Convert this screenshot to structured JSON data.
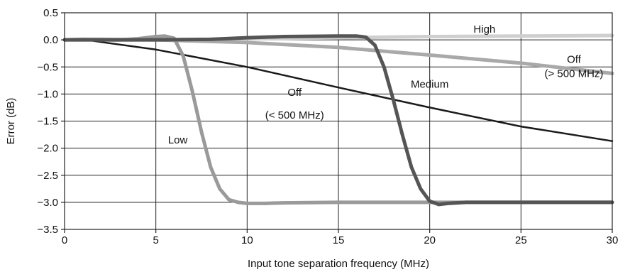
{
  "chart_data": {
    "type": "line",
    "title": "",
    "xlabel": "Input tone separation frequency (MHz)",
    "ylabel": "Error (dB)",
    "xlim": [
      0,
      30
    ],
    "ylim": [
      -3.5,
      0.5
    ],
    "grid": true,
    "xticks": [
      0,
      5,
      10,
      15,
      20,
      25,
      30
    ],
    "xtick_labels": [
      "0",
      "5",
      "10",
      "15",
      "20",
      "25",
      "30"
    ],
    "yticks": [
      0.5,
      0.0,
      -0.5,
      -1.0,
      -1.5,
      -2.0,
      -2.5,
      -3.0,
      -3.5
    ],
    "ytick_labels": [
      "0.5",
      "0.0",
      "−0.5",
      "−1.0",
      "−1.5",
      "−2.0",
      "−2.5",
      "−3.0",
      "−3.5"
    ],
    "series": [
      {
        "name": "High",
        "color": "#cfcfcf",
        "width": 5,
        "x": [
          0,
          1,
          2,
          5,
          10,
          15,
          20,
          25,
          30
        ],
        "y": [
          0.0,
          0.0,
          0.0,
          0.0,
          0.02,
          0.04,
          0.06,
          0.07,
          0.08
        ]
      },
      {
        "name": "Off (> 500 MHz)",
        "color": "#a9a9a9",
        "width": 5,
        "x": [
          0,
          1,
          2,
          5,
          10,
          15,
          20,
          25,
          30
        ],
        "y": [
          0.0,
          0.01,
          0.01,
          0.0,
          -0.05,
          -0.14,
          -0.28,
          -0.43,
          -0.62
        ]
      },
      {
        "name": "Off (< 500 MHz)",
        "color": "#1a1a1a",
        "width": 2.5,
        "x": [
          0,
          1,
          2,
          5,
          10,
          15,
          20,
          25,
          30
        ],
        "y": [
          0.0,
          0.01,
          -0.04,
          -0.18,
          -0.5,
          -0.88,
          -1.25,
          -1.6,
          -1.87
        ]
      },
      {
        "name": "Low",
        "color": "#9a9a9a",
        "width": 5,
        "x": [
          0,
          1,
          2,
          3,
          4,
          5,
          5.5,
          6,
          6.5,
          7,
          7.5,
          8,
          8.5,
          9,
          9.5,
          10,
          11,
          12,
          15,
          20,
          25,
          30
        ],
        "y": [
          0.0,
          0.01,
          0.0,
          0.0,
          0.02,
          0.06,
          0.07,
          0.03,
          -0.3,
          -0.95,
          -1.7,
          -2.35,
          -2.75,
          -2.95,
          -3.0,
          -3.02,
          -3.02,
          -3.01,
          -3.0,
          -3.0,
          -3.0,
          -3.0
        ]
      },
      {
        "name": "Medium",
        "color": "#555555",
        "width": 5,
        "x": [
          0,
          2,
          5,
          8,
          10,
          12,
          15,
          16,
          16.5,
          17,
          17.5,
          18,
          18.5,
          19,
          19.5,
          20,
          20.5,
          21,
          22,
          25,
          30
        ],
        "y": [
          0.0,
          0.0,
          0.0,
          0.01,
          0.04,
          0.06,
          0.07,
          0.07,
          0.05,
          -0.1,
          -0.5,
          -1.1,
          -1.75,
          -2.35,
          -2.75,
          -2.98,
          -3.04,
          -3.02,
          -3.0,
          -3.0,
          -3.0
        ]
      }
    ],
    "annotations": [
      {
        "text": "High",
        "x": 23.0,
        "y": 0.2
      },
      {
        "text": "Off",
        "x": 27.9,
        "y": -0.36
      },
      {
        "text": "(> 500 MHz)",
        "x": 27.9,
        "y": -0.62
      },
      {
        "text": "Medium",
        "x": 20.0,
        "y": -0.82
      },
      {
        "text": "Off",
        "x": 12.6,
        "y": -0.97
      },
      {
        "text": "(< 500 MHz)",
        "x": 12.6,
        "y": -1.39
      },
      {
        "text": "Low",
        "x": 6.2,
        "y": -1.85
      }
    ]
  }
}
